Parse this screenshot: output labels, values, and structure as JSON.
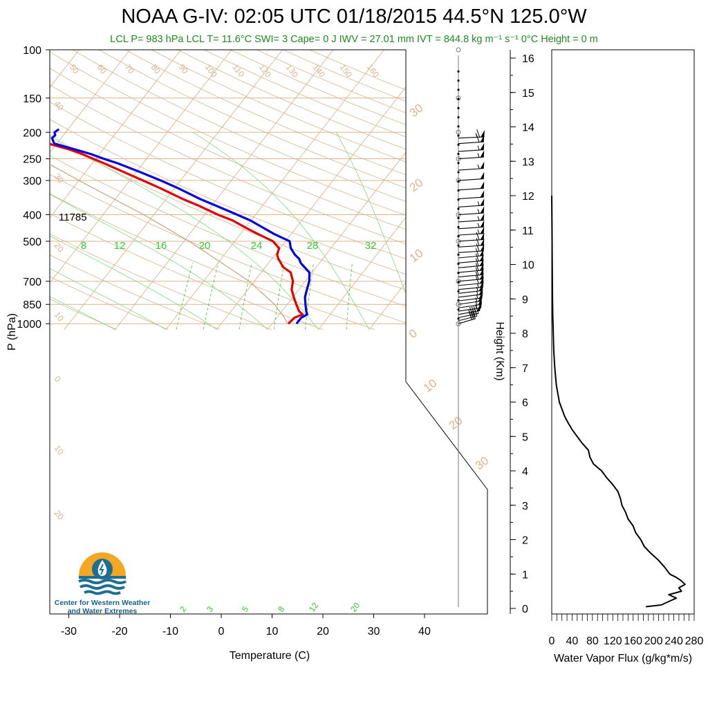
{
  "title": "NOAA G-IV: 02:05 UTC 01/18/2015  44.5°N 125.0°W",
  "subtitle": "LCL P= 983 hPa  LCL T= 11.6°C  SWI= 3  Cape= 0 J  IWV = 27.01 mm  IVT = 844.8 kg m⁻¹ s⁻¹  0°C Height = 0 m",
  "logo_text": "Center for Western Weather and Water Extremes",
  "colors": {
    "temperature": "#e00000",
    "dewpoint": "#0000e0",
    "skew_lines": "#d9b38c",
    "mixing_ratio": "#33cc33",
    "title_green": "#1f8a1f"
  },
  "chart_data": [
    {
      "type": "line",
      "name": "skew-t",
      "xlabel": "Temperature (C)",
      "ylabel": "P (hPa)",
      "x_ticks": [
        "-30",
        "-20",
        "-10",
        "0",
        "10",
        "20",
        "30",
        "40"
      ],
      "y_ticks": [
        "100",
        "150",
        "200",
        "250",
        "300",
        "400",
        "500",
        "700",
        "850",
        "1000"
      ],
      "xlim": [
        -34,
        36
      ],
      "ylim": [
        1050,
        100
      ],
      "annotation": "11785",
      "mixing_ratio_labels": [
        "8",
        "12",
        "16",
        "20",
        "24",
        "28",
        "32"
      ],
      "low_mixing_ratio_labels": [
        "2",
        "3",
        "5",
        "8",
        "12",
        "20"
      ],
      "series": [
        {
          "key": "temperature",
          "pressure": [
            1000,
            950,
            925,
            900,
            850,
            800,
            750,
            700,
            650,
            620,
            600,
            580,
            560,
            530,
            500,
            470,
            450,
            420,
            400,
            370,
            350,
            320,
            300,
            280,
            260,
            250,
            240,
            230,
            220,
            210,
            205,
            200,
            195
          ],
          "temp": [
            13.2,
            13.5,
            14.6,
            13.4,
            11.8,
            10.2,
            8.6,
            7.6,
            5.8,
            3.4,
            2.4,
            1.3,
            0.4,
            -0.2,
            -2.5,
            -6.6,
            -9.4,
            -13.6,
            -17.4,
            -22.7,
            -26.8,
            -32.8,
            -37.4,
            -42.3,
            -47.6,
            -50.5,
            -53.5,
            -57.1,
            -61.7,
            -66.8,
            -67.8,
            -67.2,
            -67.6
          ]
        },
        {
          "key": "dewpoint",
          "pressure": [
            1000,
            950,
            925,
            900,
            850,
            800,
            750,
            700,
            650,
            620,
            600,
            580,
            560,
            530,
            500,
            470,
            450,
            420,
            400,
            370,
            350,
            320,
            300,
            280,
            260,
            250,
            240,
            230,
            220,
            210,
            205,
            200,
            195
          ],
          "temp": [
            14.8,
            14.8,
            15.5,
            14.8,
            13.6,
            12.4,
            11.6,
            10.8,
            9.5,
            7.6,
            6.3,
            5.4,
            3.9,
            2.1,
            0.8,
            -3.4,
            -6.0,
            -10.1,
            -13.6,
            -19.3,
            -23.4,
            -29.3,
            -33.9,
            -39.1,
            -44.9,
            -48.4,
            -51.8,
            -56.0,
            -60.5,
            -61.8,
            -61.6,
            -62.2,
            -61.8
          ]
        },
        {
          "key": "parcel",
          "pressure": [
            1000,
            950,
            850,
            700,
            500,
            400,
            300,
            250,
            220,
            200,
            100
          ],
          "temp": [
            13,
            11.5,
            7.5,
            -1,
            -19,
            -32,
            -50,
            -61,
            -68,
            -73,
            -100
          ]
        }
      ]
    },
    {
      "type": "line",
      "name": "water-vapor-flux",
      "xlabel": "Water Vapor Flux (g/kg*m/s)",
      "ylabel": "Height (Km)",
      "x_ticks": [
        "0",
        "40",
        "80",
        "120",
        "160",
        "200",
        "240",
        "280"
      ],
      "y_ticks": [
        "0",
        "1",
        "2",
        "3",
        "4",
        "5",
        "6",
        "7",
        "8",
        "9",
        "10",
        "11",
        "12",
        "13",
        "14",
        "15",
        "16"
      ],
      "xlim": [
        0,
        280
      ],
      "ylim": [
        -0.2,
        16.4
      ],
      "height_km": [
        0.05,
        0.1,
        0.2,
        0.3,
        0.4,
        0.5,
        0.6,
        0.7,
        0.8,
        0.9,
        1.0,
        1.2,
        1.4,
        1.6,
        1.8,
        2.0,
        2.2,
        2.4,
        2.6,
        2.8,
        3.0,
        3.2,
        3.4,
        3.6,
        3.8,
        4.0,
        4.2,
        4.4,
        4.6,
        4.8,
        5.0,
        5.2,
        5.4,
        5.6,
        5.8,
        6.0,
        6.5,
        7.0,
        7.5,
        8.0,
        8.5,
        9.0,
        10.0,
        11.0,
        12.0
      ],
      "flux": [
        185,
        215,
        230,
        245,
        230,
        255,
        250,
        262,
        255,
        245,
        232,
        222,
        210,
        195,
        182,
        175,
        165,
        160,
        150,
        145,
        138,
        135,
        130,
        120,
        108,
        98,
        82,
        75,
        72,
        60,
        50,
        40,
        32,
        25,
        20,
        15,
        9,
        6,
        4,
        3,
        2,
        1.5,
        1,
        0.5,
        0
      ]
    }
  ],
  "winds": {
    "pressure": [
      1000,
      975,
      950,
      925,
      900,
      875,
      850,
      825,
      800,
      775,
      750,
      725,
      700,
      675,
      650,
      625,
      600,
      575,
      550,
      525,
      500,
      475,
      450,
      425,
      400,
      375,
      350,
      325,
      300,
      275,
      250,
      235,
      220,
      210
    ],
    "direction_deg": [
      220,
      225,
      230,
      235,
      240,
      240,
      240,
      245,
      245,
      245,
      250,
      250,
      250,
      250,
      250,
      250,
      250,
      250,
      255,
      255,
      255,
      255,
      255,
      255,
      255,
      255,
      255,
      255,
      255,
      255,
      255,
      255,
      255,
      260
    ],
    "speed_kt": [
      30,
      40,
      45,
      50,
      55,
      55,
      55,
      55,
      55,
      55,
      55,
      60,
      60,
      60,
      60,
      60,
      60,
      60,
      60,
      60,
      60,
      55,
      55,
      55,
      55,
      55,
      50,
      50,
      50,
      55,
      55,
      55,
      60,
      65
    ]
  }
}
